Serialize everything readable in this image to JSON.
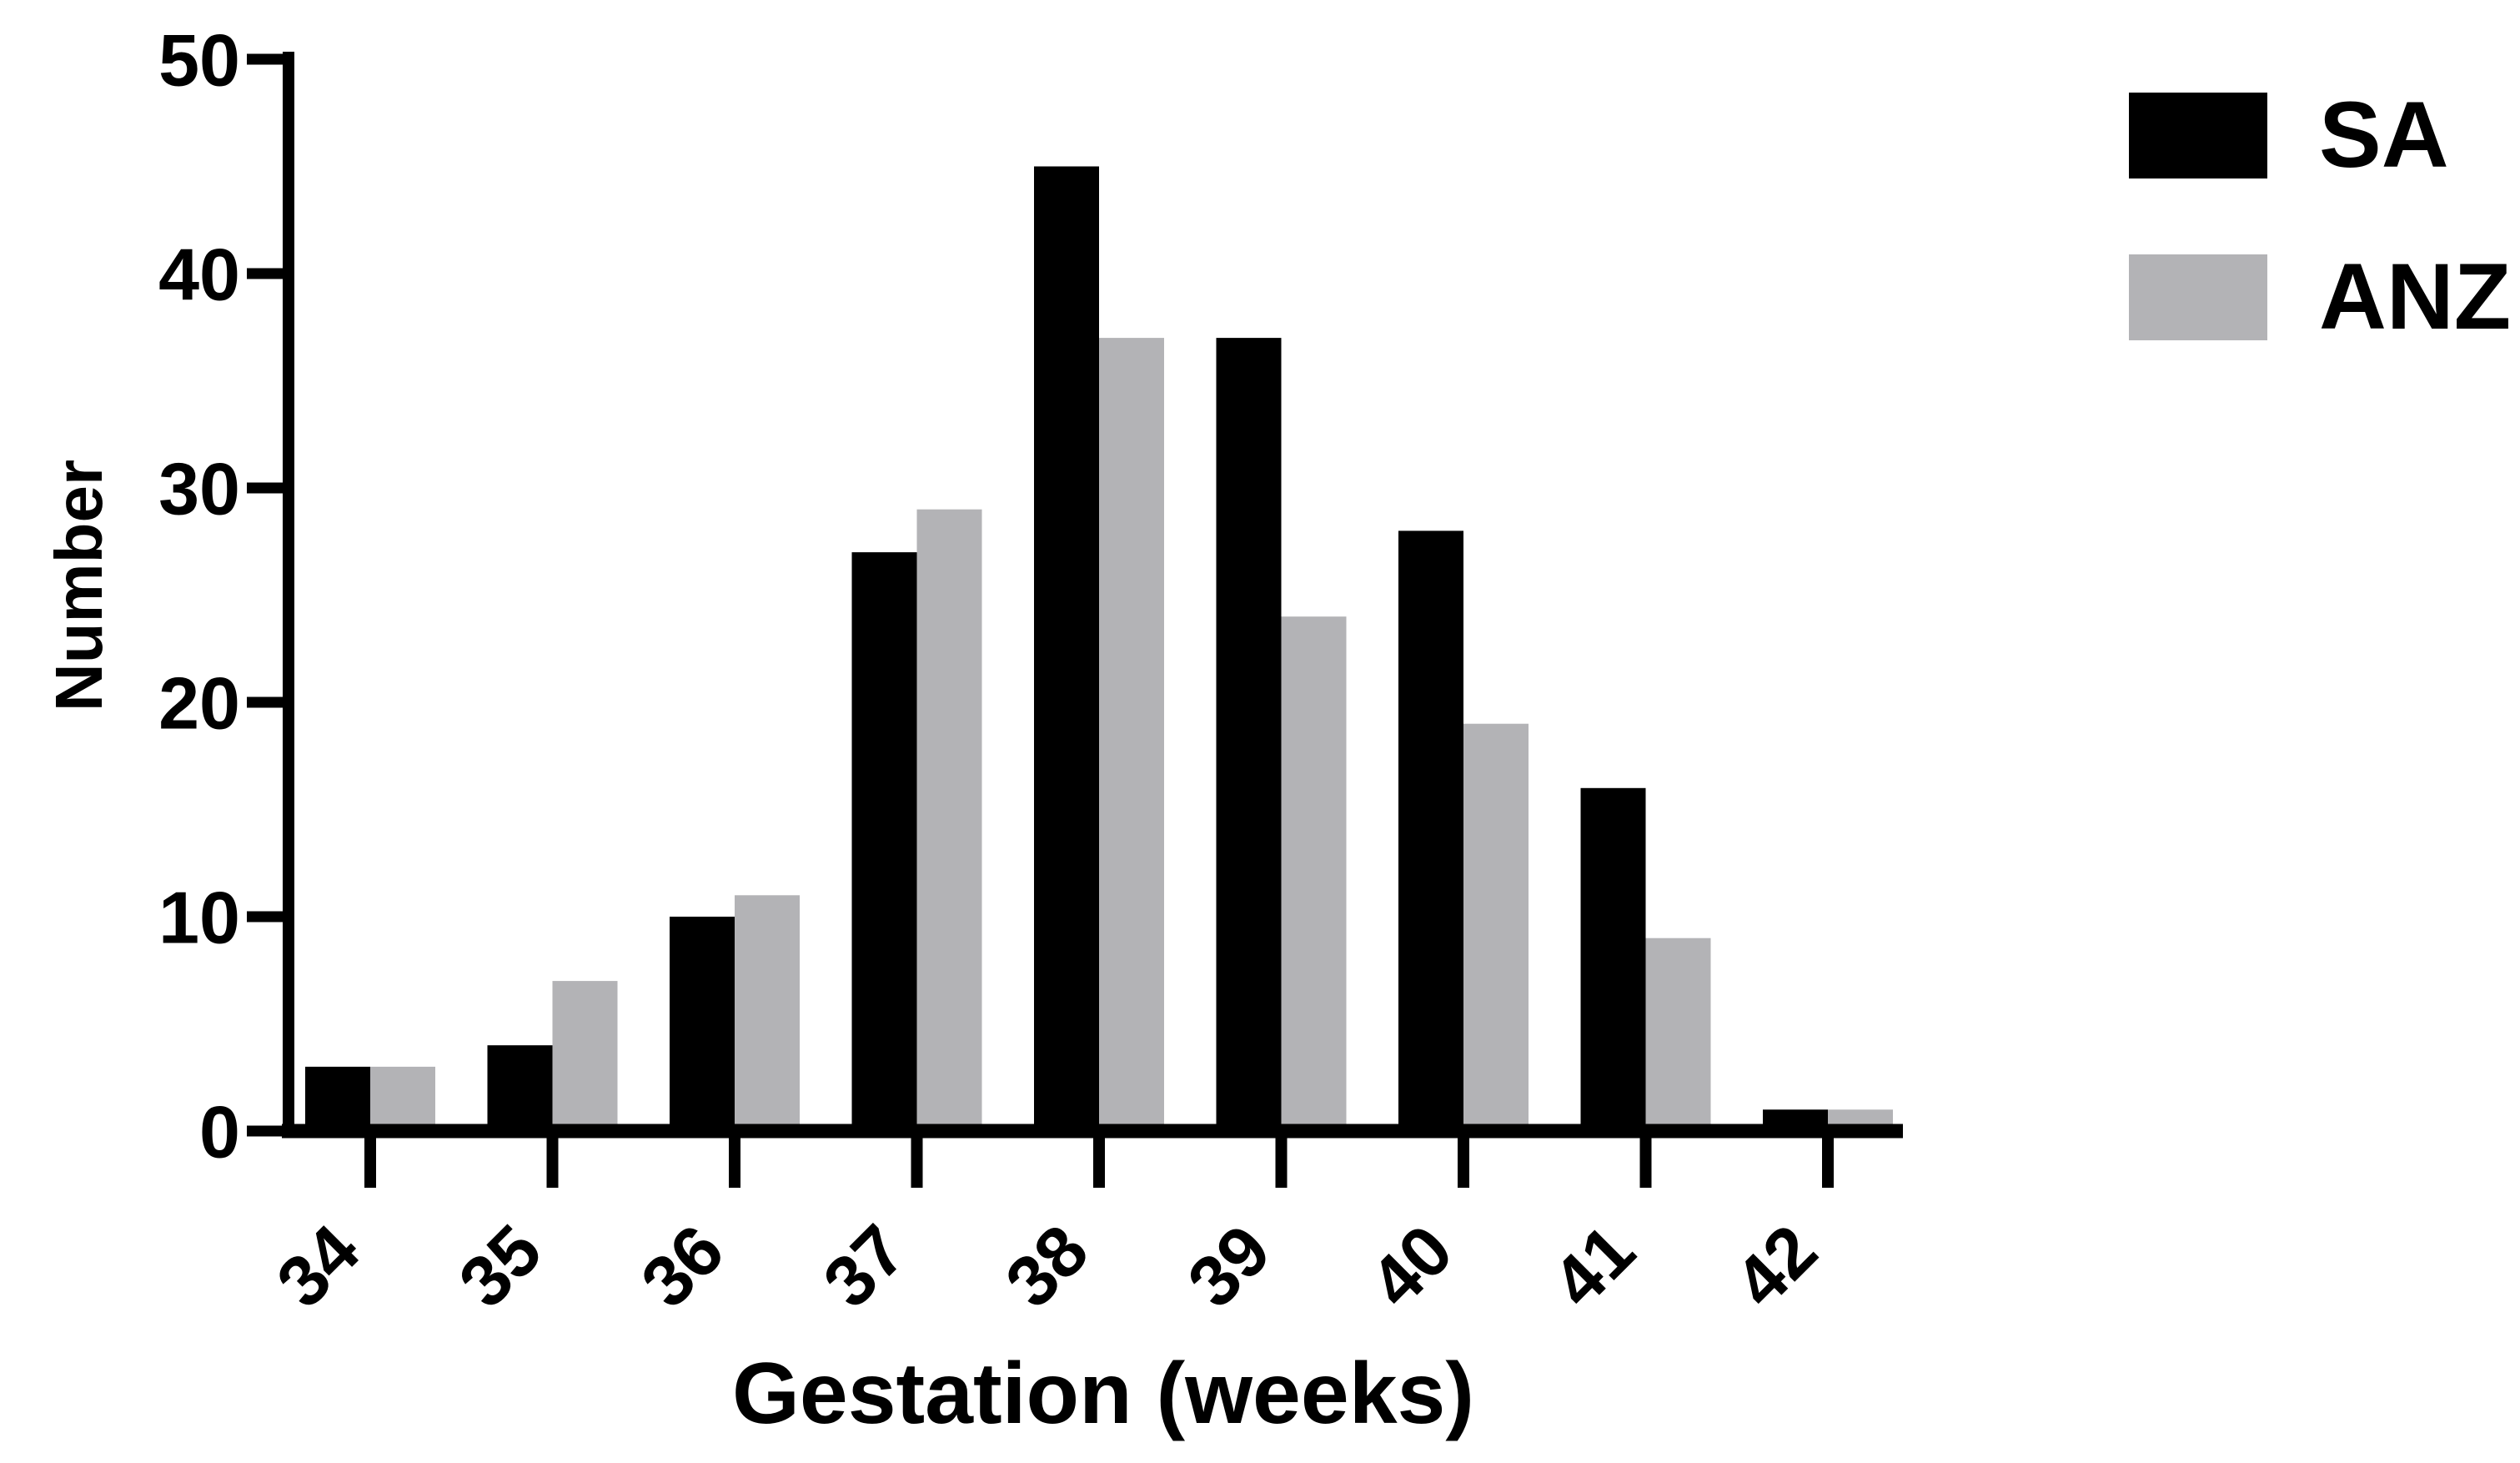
{
  "chart_data": {
    "type": "bar",
    "title": "",
    "categories": [
      "34",
      "35",
      "36",
      "37",
      "38",
      "39",
      "40",
      "41",
      "42"
    ],
    "series": [
      {
        "name": "SA",
        "color": "#000000",
        "values": [
          3,
          4,
          10,
          27,
          45,
          37,
          28,
          16,
          1
        ]
      },
      {
        "name": "ANZ",
        "color": "#b3b3b6",
        "values": [
          3,
          7,
          11,
          29,
          37,
          24,
          19,
          9,
          1
        ]
      }
    ],
    "xlabel": "Gestation (weeks)",
    "ylabel": "Number",
    "ylim": [
      0,
      50
    ],
    "yticks": [
      0,
      10,
      20,
      30,
      40,
      50
    ],
    "grid": false,
    "legend_position": "top-right",
    "axis_color": "#000000",
    "background": "#ffffff"
  }
}
